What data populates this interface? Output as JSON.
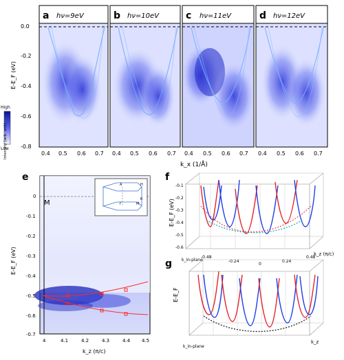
{
  "figure": {
    "panel_letters": [
      "a",
      "b",
      "c",
      "d",
      "e",
      "f",
      "g"
    ],
    "top_panels": [
      {
        "label": "a",
        "energy_label": "hν=9eV"
      },
      {
        "label": "b",
        "energy_label": "hν=10eV"
      },
      {
        "label": "c",
        "energy_label": "hν=11eV"
      },
      {
        "label": "d",
        "energy_label": "hν=12eV"
      }
    ],
    "top_y_ticks": [
      "0.0",
      "-0.2",
      "-0.4",
      "-0.6",
      "-0.8"
    ],
    "top_x_ticks": [
      "0.4",
      "0.5",
      "0.6",
      "0.7"
    ],
    "top_ylabel": "E-E_F (eV)",
    "top_xlabel": "k_x (1/Å)",
    "colorbar": {
      "high": "High",
      "low": "Low",
      "label": "Intensity (arb. unit)"
    },
    "panel_e": {
      "point_label": "M",
      "y_ticks": [
        "0",
        "-0.1",
        "-0.2",
        "-0.3",
        "-0.4",
        "-0.5",
        "-0.6",
        "-0.7"
      ],
      "x_ticks": [
        "4",
        "4.1",
        "4.2",
        "4.3",
        "4.4",
        "4.5"
      ],
      "ylabel": "E-E_F (eV)",
      "xlabel": "k_z (π/c)",
      "inset_labels": [
        "A",
        "H",
        "Γ",
        "K",
        "M"
      ]
    },
    "panel_f": {
      "y_ticks": [
        "-0.1",
        "-0.2",
        "-0.3",
        "-0.4",
        "-0.5",
        "-0.6"
      ],
      "x_ticks": [
        "-0.48",
        "-0.24",
        "0",
        "0.24",
        "0.48"
      ],
      "ylabel": "E-E_F (eV)",
      "xlabel": "k_z (π/c)",
      "depth_label": "k_in-plane"
    },
    "panel_g": {
      "ylabel": "E-E_F",
      "xlabel": "k_z",
      "depth_label": "k_in-plane"
    },
    "colors": {
      "band_blue": "#1f3ee6",
      "band_red": "#e3242b",
      "arpes_bg": "#dfe3ff",
      "trace": "#ff2a2a"
    }
  }
}
